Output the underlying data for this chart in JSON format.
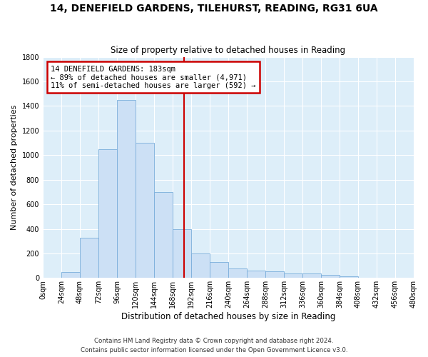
{
  "title1": "14, DENEFIELD GARDENS, TILEHURST, READING, RG31 6UA",
  "title2": "Size of property relative to detached houses in Reading",
  "xlabel": "Distribution of detached houses by size in Reading",
  "ylabel": "Number of detached properties",
  "footnote1": "Contains HM Land Registry data © Crown copyright and database right 2024.",
  "footnote2": "Contains public sector information licensed under the Open Government Licence v3.0.",
  "annotation_line1": "14 DENEFIELD GARDENS: 183sqm",
  "annotation_line2": "← 89% of detached houses are smaller (4,971)",
  "annotation_line3": "11% of semi-detached houses are larger (592) →",
  "property_size": 183,
  "bin_edges": [
    0,
    24,
    48,
    72,
    96,
    120,
    144,
    168,
    192,
    216,
    240,
    264,
    288,
    312,
    336,
    360,
    384,
    408,
    432,
    456,
    480
  ],
  "bar_heights": [
    5,
    50,
    330,
    1050,
    1450,
    1100,
    700,
    400,
    200,
    130,
    80,
    60,
    55,
    40,
    35,
    25,
    15,
    5,
    3,
    2
  ],
  "bar_color": "#cce0f5",
  "bar_edge_color": "#7aaedb",
  "vline_color": "#cc0000",
  "background_color": "#ddeef9",
  "grid_color": "#ffffff",
  "annotation_box_color": "#cc0000",
  "ylim": [
    0,
    1800
  ],
  "xlim": [
    0,
    480
  ],
  "title1_fontsize": 10,
  "title2_fontsize": 8.5,
  "xlabel_fontsize": 8.5,
  "ylabel_fontsize": 8,
  "tick_fontsize": 7,
  "footnote_fontsize": 6.2
}
